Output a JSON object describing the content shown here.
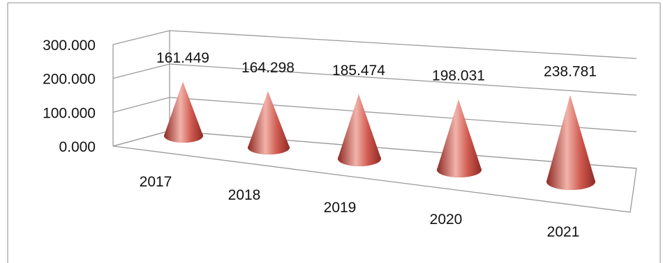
{
  "chart_data": {
    "type": "bar",
    "bar_shape": "3d-cone",
    "categories": [
      "2017",
      "2018",
      "2019",
      "2020",
      "2021"
    ],
    "values": [
      161.449,
      164.298,
      185.474,
      198.031,
      238.781
    ],
    "data_labels": [
      "161.449",
      "164.298",
      "185.474",
      "198.031",
      "238.781"
    ],
    "y_ticks": [
      "0.000",
      "100.000",
      "200.000",
      "300.000"
    ],
    "ylim": [
      0,
      300
    ],
    "title": "",
    "xlabel": "",
    "ylabel": "",
    "grid": true,
    "legend": "none",
    "colors": {
      "cone_dark": "#8e2a24",
      "cone_mid": "#cf5a50",
      "cone_light": "#f2b3aa",
      "grid": "#9a9a9a",
      "frame": "#a6a6a6"
    }
  }
}
